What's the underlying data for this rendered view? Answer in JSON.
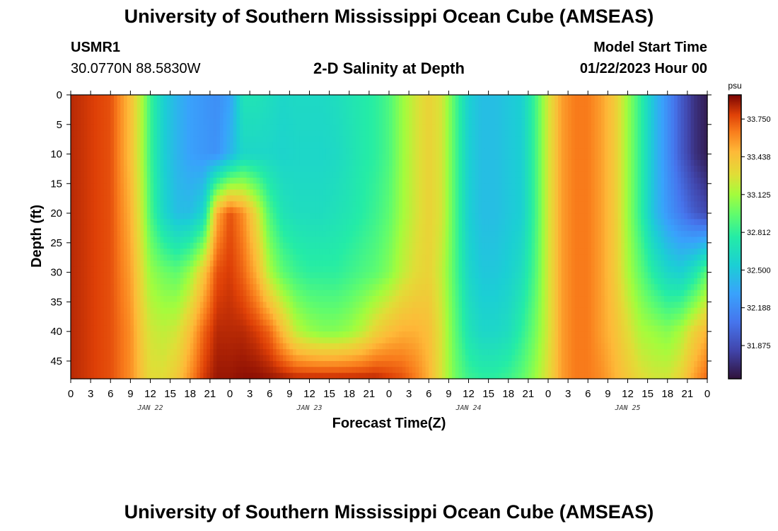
{
  "header": {
    "title": "University of Southern Mississippi Ocean Cube (AMSEAS)",
    "station": "USMR1",
    "coords": "30.0770N  88.5830W",
    "subtitle": "2-D Salinity at Depth",
    "start_label": "Model Start Time",
    "start_value": "01/22/2023 Hour 00"
  },
  "footer": {
    "title": "University of Southern Mississippi Ocean Cube (AMSEAS)"
  },
  "chart_data": {
    "type": "heatmap",
    "title": "2-D Salinity at Depth",
    "xlabel": "Forecast Time(Z)",
    "ylabel": "Depth (ft)",
    "x_range_hours": [
      0,
      96
    ],
    "x_tick_step_hours": 3,
    "x_tick_labels": [
      "0",
      "3",
      "6",
      "9",
      "12",
      "15",
      "18",
      "21",
      "0",
      "3",
      "6",
      "9",
      "12",
      "15",
      "18",
      "21",
      "0",
      "3",
      "6",
      "9",
      "12",
      "15",
      "18",
      "21",
      "0",
      "3",
      "6",
      "9",
      "12",
      "15",
      "18",
      "21",
      "0"
    ],
    "day_labels": [
      {
        "label": "JAN 22",
        "hour": 12
      },
      {
        "label": "JAN 23",
        "hour": 36
      },
      {
        "label": "JAN 24",
        "hour": 60
      },
      {
        "label": "JAN 25",
        "hour": 84
      }
    ],
    "y_range_ft": [
      0,
      48
    ],
    "y_ticks": [
      0,
      5,
      10,
      15,
      20,
      25,
      30,
      35,
      40,
      45
    ],
    "colorbar": {
      "unit": "psu",
      "min": 31.6,
      "max": 33.95,
      "ticks": [
        "33.750",
        "33.438",
        "33.125",
        "32.812",
        "32.500",
        "32.188",
        "31.875"
      ]
    },
    "depth_levels_ft": [
      0,
      10,
      20,
      30,
      40,
      48
    ],
    "salinity_psu": {
      "hours": [
        0,
        6,
        9,
        11,
        12,
        14,
        16,
        18,
        20,
        22,
        24,
        26,
        28,
        30,
        32,
        34,
        36,
        38,
        40,
        42,
        44,
        46,
        48,
        50,
        52,
        54,
        56,
        58,
        60,
        62,
        64,
        66,
        68,
        70,
        72,
        74,
        76,
        78,
        80,
        82,
        84,
        86,
        88,
        90,
        92,
        94,
        96
      ],
      "rows": [
        [
          33.85,
          33.75,
          33.45,
          33.1,
          32.85,
          32.55,
          32.4,
          32.3,
          32.25,
          32.2,
          32.3,
          32.7,
          32.7,
          32.65,
          32.6,
          32.62,
          32.62,
          32.62,
          32.65,
          32.7,
          32.75,
          32.8,
          32.9,
          33.1,
          33.25,
          33.35,
          33.25,
          32.9,
          32.55,
          32.45,
          32.45,
          32.5,
          32.55,
          32.85,
          33.25,
          33.55,
          33.65,
          33.65,
          33.55,
          33.4,
          33.1,
          32.8,
          32.45,
          32.2,
          31.95,
          31.75,
          31.65
        ],
        [
          33.85,
          33.75,
          33.45,
          33.1,
          32.85,
          32.55,
          32.4,
          32.3,
          32.25,
          32.22,
          32.4,
          32.6,
          32.6,
          32.6,
          32.58,
          32.6,
          32.6,
          32.6,
          32.62,
          32.68,
          32.75,
          32.8,
          32.9,
          33.1,
          33.25,
          33.35,
          33.25,
          32.9,
          32.55,
          32.45,
          32.45,
          32.5,
          32.55,
          32.85,
          33.25,
          33.55,
          33.65,
          33.65,
          33.55,
          33.4,
          33.1,
          32.8,
          32.45,
          32.2,
          31.95,
          31.75,
          31.65
        ],
        [
          33.85,
          33.75,
          33.5,
          33.15,
          32.9,
          32.6,
          32.45,
          32.45,
          32.6,
          33.5,
          33.75,
          33.6,
          33.3,
          32.9,
          32.7,
          32.65,
          32.65,
          32.65,
          32.68,
          32.72,
          32.78,
          32.85,
          32.95,
          33.12,
          33.25,
          33.35,
          33.25,
          32.9,
          32.55,
          32.45,
          32.45,
          32.5,
          32.55,
          32.85,
          33.25,
          33.55,
          33.65,
          33.65,
          33.55,
          33.4,
          33.1,
          32.8,
          32.45,
          32.25,
          32.1,
          31.95,
          31.85
        ],
        [
          33.85,
          33.75,
          33.55,
          33.25,
          33.1,
          33.0,
          32.95,
          33.1,
          33.4,
          33.75,
          33.8,
          33.7,
          33.5,
          33.15,
          32.95,
          32.85,
          32.8,
          32.8,
          32.8,
          32.85,
          32.9,
          32.95,
          33.05,
          33.2,
          33.3,
          33.35,
          33.2,
          32.9,
          32.6,
          32.5,
          32.5,
          32.55,
          32.65,
          32.9,
          33.25,
          33.55,
          33.65,
          33.65,
          33.55,
          33.4,
          33.15,
          32.95,
          32.75,
          32.6,
          32.55,
          32.7,
          32.95
        ],
        [
          33.85,
          33.75,
          33.6,
          33.35,
          33.25,
          33.2,
          33.25,
          33.45,
          33.7,
          33.85,
          33.85,
          33.85,
          33.8,
          33.7,
          33.45,
          33.2,
          33.1,
          33.05,
          33.05,
          33.1,
          33.2,
          33.35,
          33.45,
          33.5,
          33.5,
          33.45,
          33.25,
          32.95,
          32.7,
          32.6,
          32.6,
          32.65,
          32.8,
          33.0,
          33.25,
          33.55,
          33.65,
          33.65,
          33.55,
          33.45,
          33.3,
          33.15,
          33.1,
          33.05,
          33.15,
          33.35,
          33.5
        ],
        [
          33.85,
          33.75,
          33.6,
          33.4,
          33.3,
          33.3,
          33.4,
          33.6,
          33.8,
          33.9,
          33.9,
          33.92,
          33.92,
          33.9,
          33.88,
          33.85,
          33.85,
          33.85,
          33.85,
          33.85,
          33.85,
          33.85,
          33.8,
          33.75,
          33.65,
          33.5,
          33.25,
          33.0,
          32.85,
          32.8,
          32.8,
          32.85,
          32.95,
          33.1,
          33.3,
          33.55,
          33.65,
          33.65,
          33.6,
          33.5,
          33.4,
          33.3,
          33.25,
          33.25,
          33.35,
          33.55,
          33.7
        ]
      ]
    }
  }
}
